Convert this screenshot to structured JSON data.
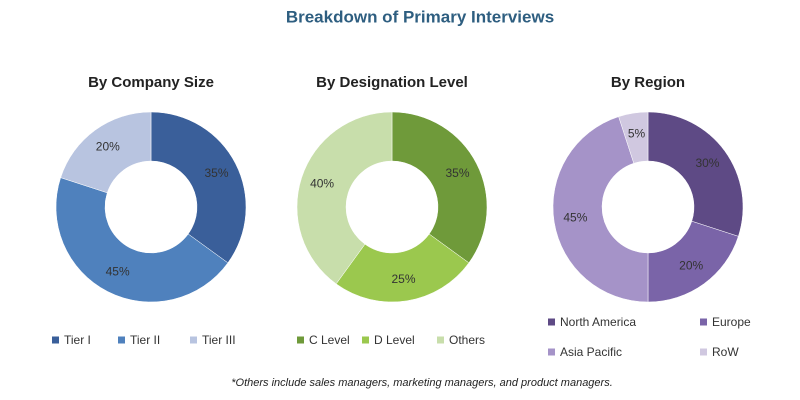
{
  "title": "Breakdown of Primary Interviews",
  "note": "*Others include sales managers, marketing managers, and product managers.",
  "chart_data": [
    {
      "type": "donut",
      "title": "By Company Size",
      "categories": [
        "Tier I",
        "Tier II",
        "Tier III"
      ],
      "values": [
        35,
        45,
        20
      ],
      "value_labels": [
        "35%",
        "45%",
        "20%"
      ],
      "colors": [
        "#3a5f9a",
        "#4f81bd",
        "#b8c4e0"
      ]
    },
    {
      "type": "donut",
      "title": "By Designation Level",
      "categories": [
        "C Level",
        "D Level",
        "Others"
      ],
      "values": [
        35,
        25,
        40
      ],
      "value_labels": [
        "35%",
        "25%",
        "40%"
      ],
      "colors": [
        "#6f9a3a",
        "#9bc84e",
        "#c8deab"
      ]
    },
    {
      "type": "donut",
      "title": "By Region",
      "categories": [
        "North America",
        "Europe",
        "Asia Pacific",
        "RoW"
      ],
      "values": [
        30,
        20,
        45,
        5
      ],
      "value_labels": [
        "30%",
        "20%",
        "45%",
        "5%"
      ],
      "colors": [
        "#5e4a85",
        "#7a64a8",
        "#a593c8",
        "#d0c8e0"
      ]
    }
  ]
}
